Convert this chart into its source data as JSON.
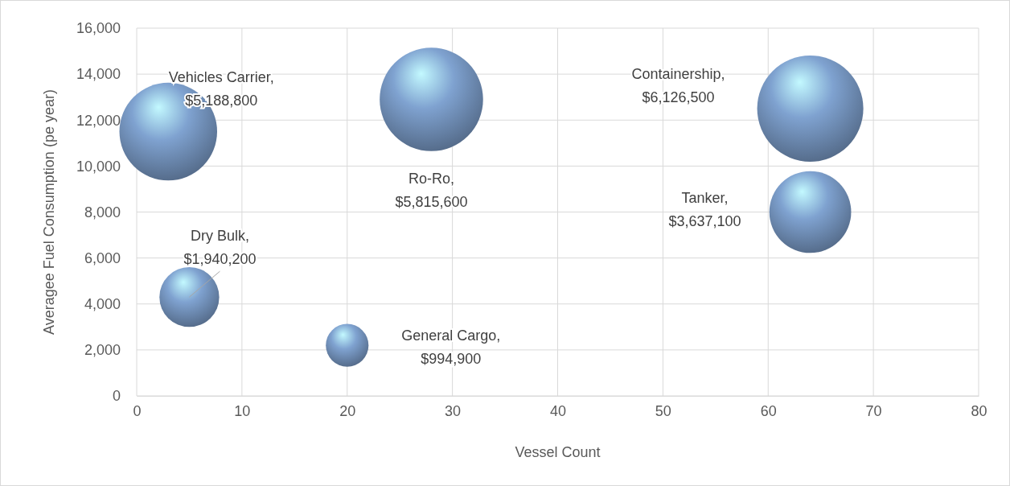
{
  "chart_data": {
    "type": "bubble",
    "xlabel": "Vessel Count",
    "ylabel": "Averagee Fuel Consumption (pe year)",
    "xlim": [
      0,
      80
    ],
    "xticks": [
      0,
      10,
      20,
      30,
      40,
      50,
      60,
      70,
      80
    ],
    "ylim": [
      0,
      16000
    ],
    "yticks": [
      {
        "value": 0,
        "label": "0"
      },
      {
        "value": 2000,
        "label": "2,000"
      },
      {
        "value": 4000,
        "label": "4,000"
      },
      {
        "value": 6000,
        "label": "6,000"
      },
      {
        "value": 8000,
        "label": "8,000"
      },
      {
        "value": 10000,
        "label": "10,000"
      },
      {
        "value": 12000,
        "label": "12,000"
      },
      {
        "value": 14000,
        "label": "14,000"
      },
      {
        "value": 16000,
        "label": "16,000"
      }
    ],
    "grid": true,
    "series": [
      {
        "color": "#7fa2d0",
        "x": [
          3,
          28,
          64,
          64,
          5,
          20
        ],
        "values": [
          11500,
          12900,
          12500,
          8000,
          4300,
          2200
        ],
        "sizes": [
          0.847,
          0.949,
          1,
          0.594,
          0.317,
          0.162
        ]
      }
    ],
    "annotations": [
      "Vehicles Carrier, $5,188,800",
      "Ro-Ro, $5,815,600",
      "Containership, $6,126,500",
      "Tanker, $3,637,100",
      "Dry Bulk, $1,940,200",
      "General Cargo, $994,900"
    ]
  }
}
